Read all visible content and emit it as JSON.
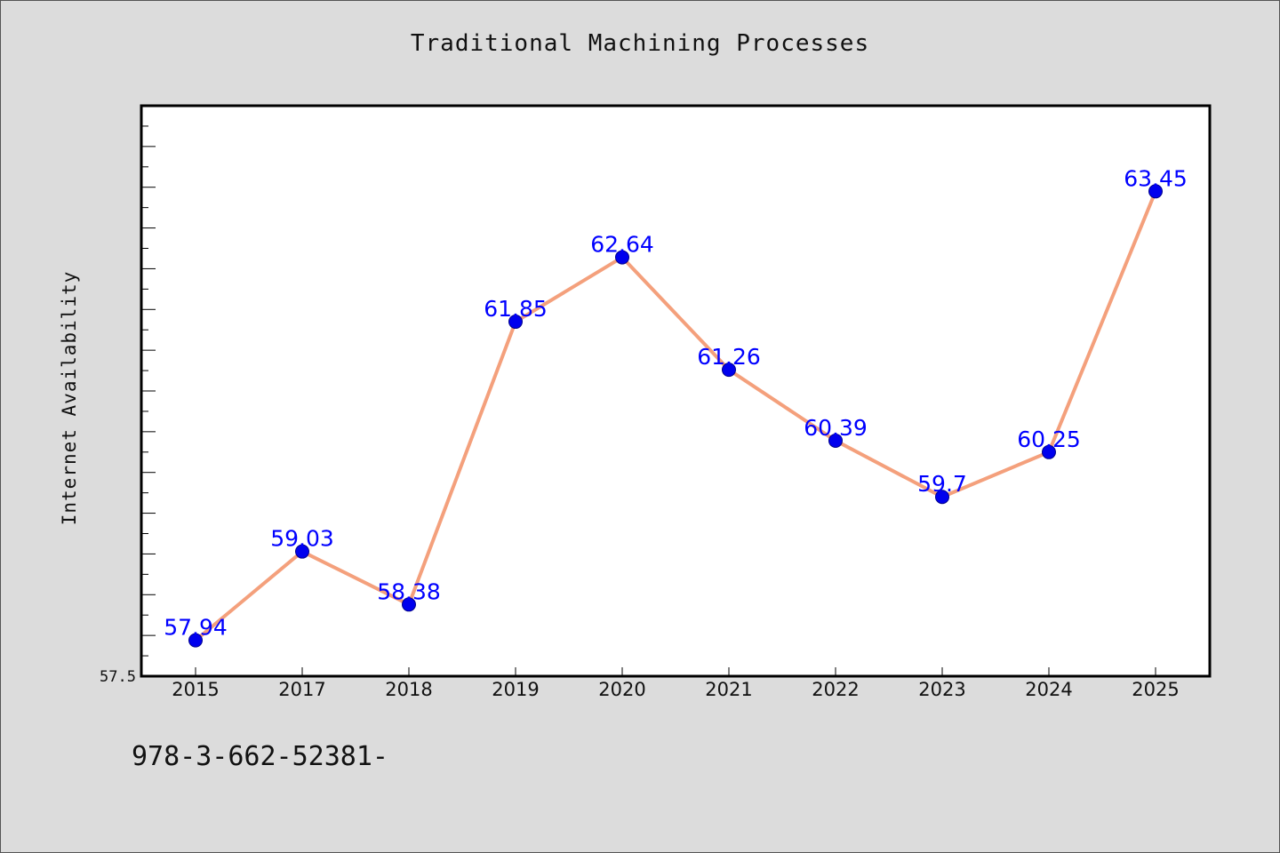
{
  "chart_data": {
    "type": "line",
    "title": "Traditional Machining Processes",
    "xlabel": "",
    "ylabel": "Internet Availability",
    "categories": [
      "2015",
      "2017",
      "2018",
      "2019",
      "2020",
      "2021",
      "2022",
      "2023",
      "2024",
      "2025"
    ],
    "series": [
      {
        "values": [
          57.94,
          59.03,
          58.38,
          61.85,
          62.64,
          61.26,
          60.39,
          59.7,
          60.25,
          63.45
        ]
      }
    ],
    "ylim": [
      57.5,
      64.5
    ],
    "yticks_labeled": [
      "57.5"
    ],
    "grid": false,
    "data_labels": true,
    "colors": {
      "line": "#f4a07c",
      "marker": "#0000ee",
      "label": "#0000ff",
      "background": "#dcdcdc",
      "plot_background": "#ffffff"
    }
  },
  "footer": {
    "code": "978-3-662-52381-"
  }
}
